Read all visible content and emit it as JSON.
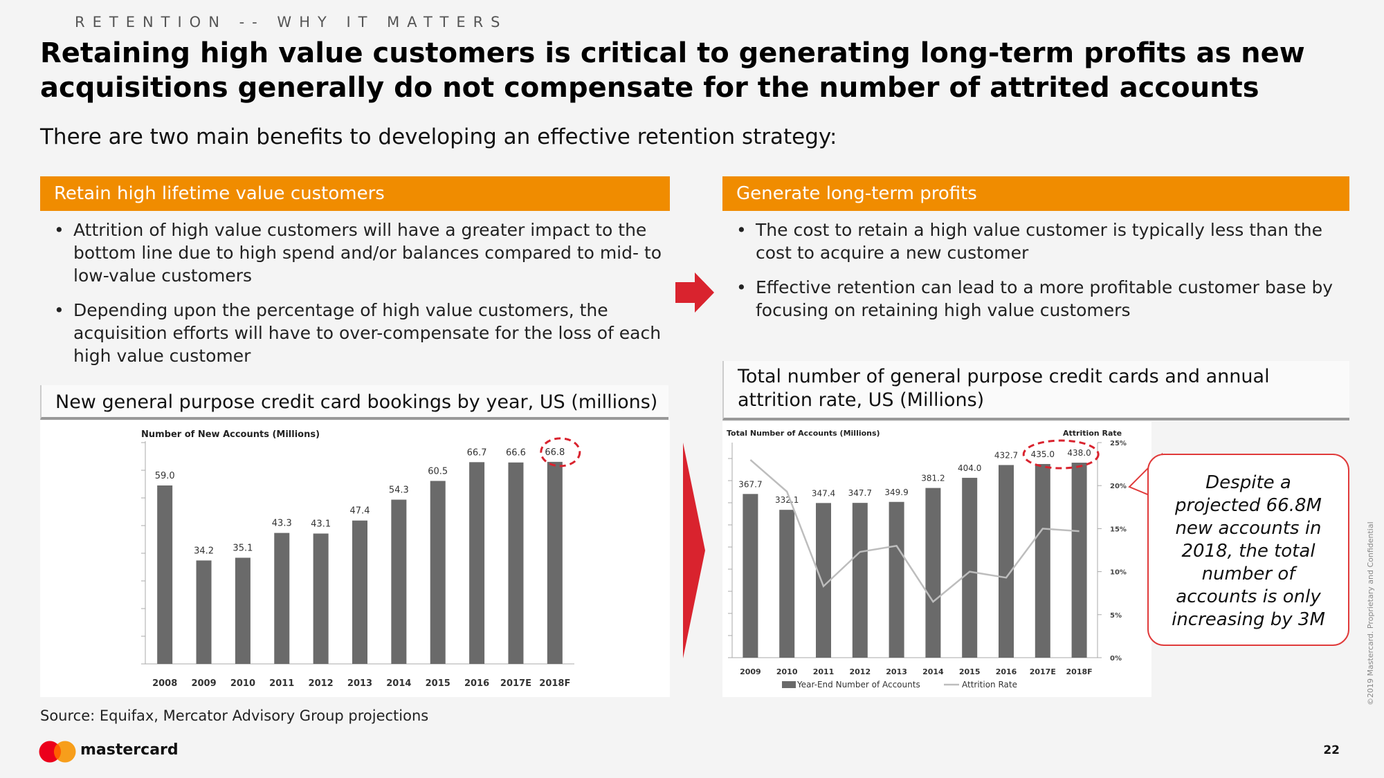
{
  "header": {
    "eyebrow": "RETENTION -- WHY IT MATTERS",
    "title": "Retaining high value customers is critical to generating long-term profits as new acquisitions generally do not compensate for the number of attrited accounts",
    "subtitle": "There are two main benefits to developing an effective retention strategy:"
  },
  "left_section": {
    "heading": "Retain high lifetime value customers",
    "bullets": [
      "Attrition of high value customers will have a greater impact to the bottom line due to high spend and/or balances compared to mid- to low-value customers",
      "Depending upon the percentage of high value customers, the acquisition efforts will have to over-compensate for the loss of each high value customer"
    ],
    "chart_heading": "New general purpose credit card bookings by year, US (millions)"
  },
  "right_section": {
    "heading": "Generate long-term profits",
    "bullets": [
      "The cost to retain a high value customer is typically less than the cost to acquire a new customer",
      "Effective retention can lead to a more profitable customer base by focusing on retaining high value customers"
    ],
    "chart_heading": "Total number of general purpose credit cards and annual attrition rate, US (Millions)"
  },
  "callout": {
    "text": "Despite a projected 66.8M new accounts in 2018, the total number of accounts is only increasing by 3M"
  },
  "footer": {
    "source": "Source: Equifax, Mercator Advisory Group projections",
    "brand": "mastercard",
    "page_number": "22",
    "copyright": "©2019 Mastercard. Proprietary and Confidential"
  },
  "colors": {
    "accent_orange": "#f08c00",
    "arrow_red": "#d9232e",
    "bar_gray": "#6a6a6a",
    "line_gray": "#bdbdbd",
    "callout_red": "#e03a3a"
  },
  "icons": {
    "arrow": "arrow-right-icon",
    "divider": "chevron-right-icon",
    "logo": "mastercard-logo"
  },
  "chart_data": [
    {
      "type": "bar",
      "title": "Number of New Accounts (Millions)",
      "categories": [
        "2008",
        "2009",
        "2010",
        "2011",
        "2012",
        "2013",
        "2014",
        "2015",
        "2016",
        "2017E",
        "2018F"
      ],
      "values": [
        59.0,
        34.2,
        35.1,
        43.3,
        43.1,
        47.4,
        54.3,
        60.5,
        66.7,
        66.6,
        66.8
      ],
      "labels": [
        "59.0",
        "34.2",
        "35.1",
        "43.3",
        "43.1",
        "47.4",
        "54.3",
        "60.5",
        "66.7",
        "66.6",
        "66.8"
      ],
      "ylim": [
        0,
        75
      ],
      "highlight_index": 10
    },
    {
      "type": "bar+line",
      "title": "Total Number of Accounts (Millions)",
      "right_axis_title": "Attrition Rate",
      "categories": [
        "2009",
        "2010",
        "2011",
        "2012",
        "2013",
        "2014",
        "2015",
        "2016",
        "2017E",
        "2018F"
      ],
      "series": [
        {
          "name": "Year-End Number of Accounts",
          "type": "bar",
          "values": [
            367.7,
            332.1,
            347.4,
            347.7,
            349.9,
            381.2,
            404.0,
            432.7,
            435.0,
            438.0
          ],
          "labels": [
            "367.7",
            "332.1",
            "347.4",
            "347.7",
            "349.9",
            "381.2",
            "404.0",
            "432.7",
            "435.0",
            "438.0"
          ]
        },
        {
          "name": "Attrition Rate",
          "type": "line",
          "axis": "right",
          "values": [
            23.0,
            19.3,
            8.3,
            12.3,
            13.0,
            6.5,
            10.0,
            9.3,
            15.0,
            14.7
          ]
        }
      ],
      "ylim": [
        0,
        480
      ],
      "y2lim": [
        0,
        25
      ],
      "y2ticks": [
        "0%",
        "5%",
        "10%",
        "15%",
        "20%",
        "25%"
      ],
      "highlight_indices": [
        8,
        9
      ]
    }
  ]
}
